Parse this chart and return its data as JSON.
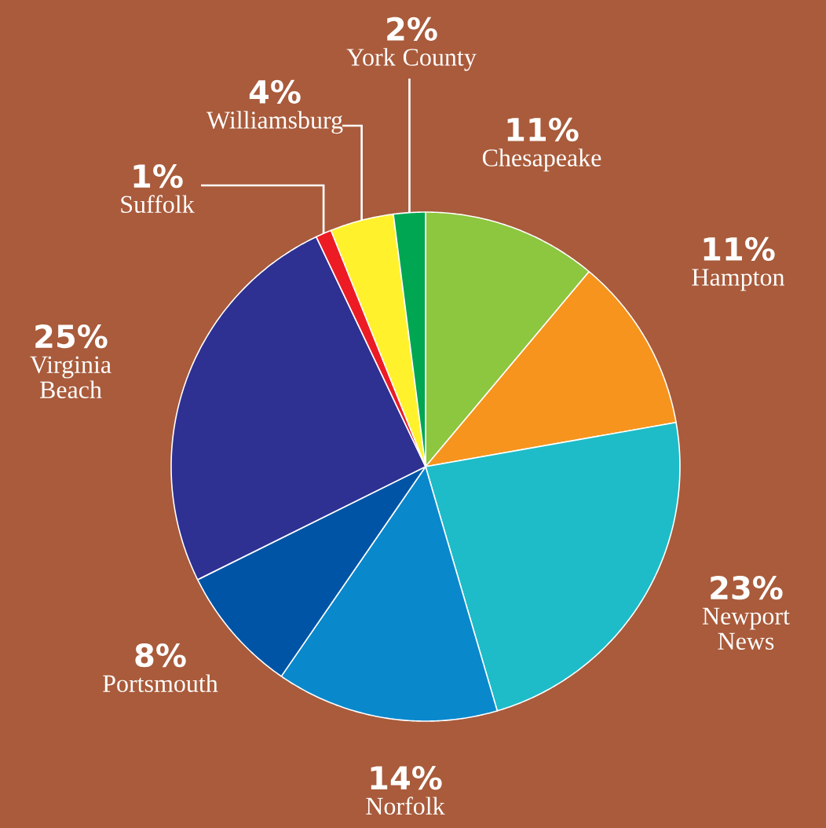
{
  "chart_data": {
    "type": "pie",
    "categories": [
      "Chesapeake",
      "Hampton",
      "Newport News",
      "Norfolk",
      "Portsmouth",
      "Virginia Beach",
      "Suffolk",
      "Williamsburg",
      "York County"
    ],
    "values": [
      11,
      11,
      23,
      14,
      8,
      25,
      1,
      4,
      2
    ],
    "value_labels": [
      "11%",
      "11%",
      "23%",
      "14%",
      "8%",
      "25%",
      "1%",
      "4%",
      "2%"
    ],
    "colors": [
      "#8dc63f",
      "#f7941d",
      "#1ebcc8",
      "#0a88cc",
      "#0054a6",
      "#2e3192",
      "#ed1c24",
      "#fff22d",
      "#00a651"
    ]
  }
}
